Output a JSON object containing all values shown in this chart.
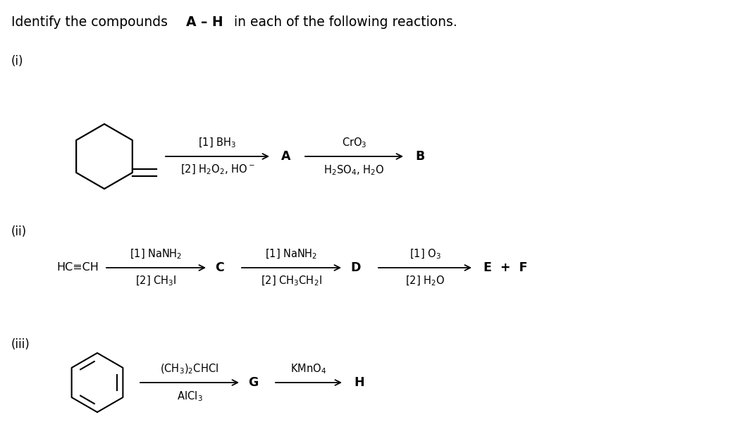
{
  "background_color": "#ffffff",
  "figsize": [
    10.4,
    6.16
  ],
  "dpi": 100,
  "title_normal1": "Identify the compounds ",
  "title_bold": "A – H",
  "title_normal2": " in each of the following reactions.",
  "title_fontsize": 13.5,
  "label_fontsize": 12,
  "reagent_fontsize": 10.5,
  "compound_fontsize": 12.5
}
